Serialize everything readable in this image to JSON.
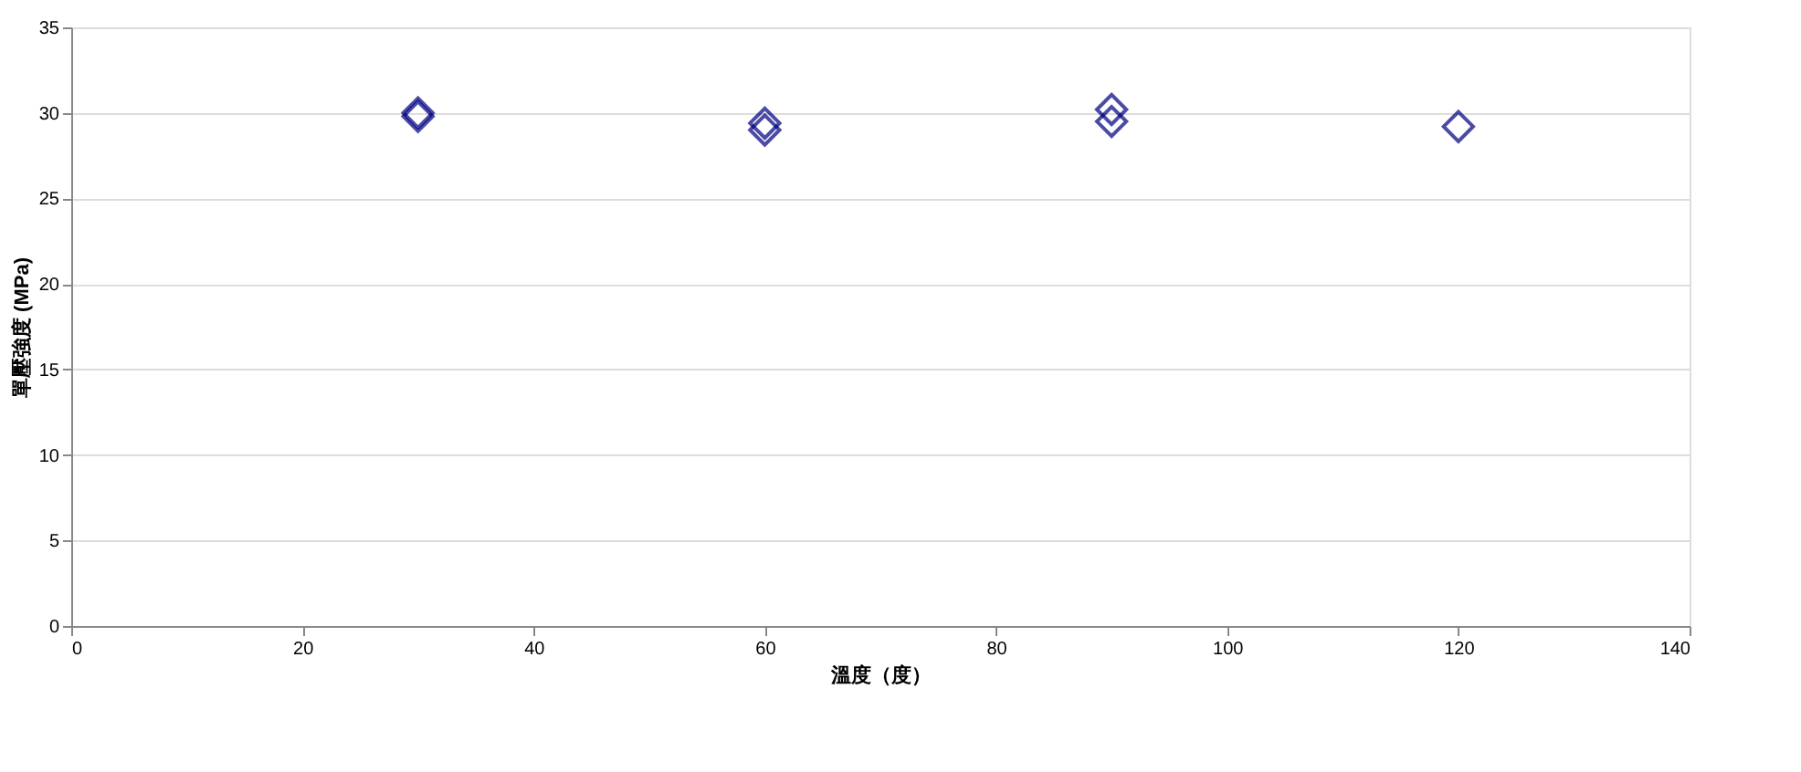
{
  "chart_data": {
    "type": "scatter",
    "xlabel": "溫度（度）",
    "ylabel": "單壓強度 (MPa)",
    "x": [
      30,
      30,
      60,
      60,
      90,
      90,
      120
    ],
    "series": [
      {
        "color": "#000080",
        "values": [
          29.8,
          30.0,
          29.4,
          29.0,
          30.2,
          29.5,
          29.2
        ]
      }
    ],
    "xlim": [
      0,
      140
    ],
    "xticks": [
      0,
      20,
      40,
      60,
      80,
      100,
      120,
      140
    ],
    "ylim": [
      0,
      35
    ],
    "yticks": [
      0,
      5,
      10,
      15,
      20,
      25,
      30,
      35
    ],
    "grid": "y",
    "marker": "diamond",
    "legend": false
  }
}
